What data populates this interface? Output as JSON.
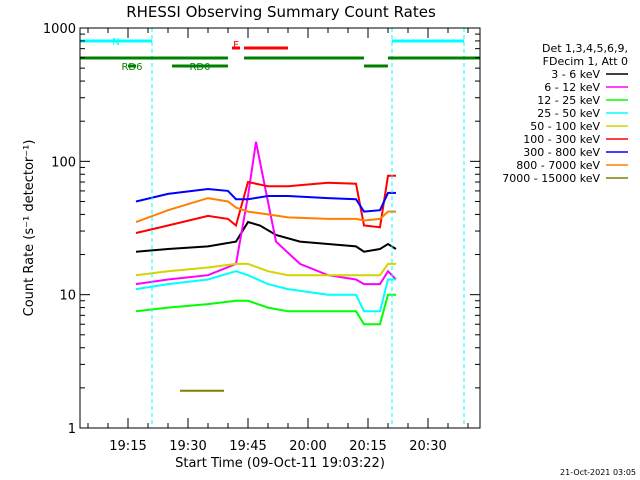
{
  "chart_data": {
    "type": "line",
    "title": "RHESSI Observing Summary Count Rates",
    "xlabel": "Start Time (09-Oct-11 19:03:22)",
    "ylabel": "Count Rate (s⁻¹ detector⁻¹)",
    "yscale": "log",
    "xlim": [
      "19:03",
      "20:43"
    ],
    "ylim": [
      1,
      1000
    ],
    "x_ticks": [
      "19:15",
      "19:30",
      "19:45",
      "20:00",
      "20:15",
      "20:30"
    ],
    "y_ticks": [
      "1",
      "10",
      "100",
      "1000"
    ],
    "legend_position": "right",
    "legend_header": [
      "Det 1,3,4,5,6,9,",
      "FDecim 1, Att 0"
    ],
    "footer": "21-Oct-2021 03:05",
    "data_gaps": [
      {
        "start": "19:03",
        "end": "19:17"
      },
      {
        "start": "20:23",
        "end": "20:43"
      }
    ],
    "flag_markers": {
      "night_lines": [
        "19:03",
        "19:21",
        "20:21",
        "20:39"
      ],
      "night_bars": [
        {
          "start": "19:03",
          "end": "19:21",
          "label": "N"
        },
        {
          "start": "20:21",
          "end": "20:39",
          "label": ""
        }
      ],
      "flare_bars": [
        {
          "start": "19:41",
          "end": "19:43",
          "label": "F"
        },
        {
          "start": "19:44",
          "end": "19:55",
          "label": ""
        }
      ],
      "saa_bars_top": [
        {
          "start": "19:03",
          "end": "19:40",
          "label": ""
        },
        {
          "start": "19:44",
          "end": "20:14",
          "label": ""
        },
        {
          "start": "20:20",
          "end": "20:43",
          "label": ""
        }
      ],
      "saa_bars_bottom": [
        {
          "start": "19:26",
          "end": "19:40",
          "label": "RD0"
        },
        {
          "start": "19:15",
          "end": "19:17",
          "label": "RD6"
        },
        {
          "start": "20:14",
          "end": "20:20",
          "label": ""
        }
      ]
    },
    "series": [
      {
        "name": "3 - 6 keV",
        "color": "#000000",
        "points": [
          [
            "19:17",
            21
          ],
          [
            "19:25",
            22
          ],
          [
            "19:35",
            23
          ],
          [
            "19:42",
            25
          ],
          [
            "19:45",
            35
          ],
          [
            "19:48",
            33
          ],
          [
            "19:52",
            28
          ],
          [
            "19:58",
            25
          ],
          [
            "20:05",
            24
          ],
          [
            "20:12",
            23
          ],
          [
            "20:14",
            21
          ],
          [
            "20:18",
            22
          ],
          [
            "20:20",
            24
          ],
          [
            "20:22",
            22
          ]
        ]
      },
      {
        "name": "6 - 12 keV",
        "color": "#ff00ff",
        "points": [
          [
            "19:17",
            12
          ],
          [
            "19:25",
            13
          ],
          [
            "19:35",
            14
          ],
          [
            "19:42",
            17
          ],
          [
            "19:45",
            55
          ],
          [
            "19:47",
            140
          ],
          [
            "19:49",
            70
          ],
          [
            "19:52",
            25
          ],
          [
            "19:58",
            17
          ],
          [
            "20:05",
            14
          ],
          [
            "20:12",
            13
          ],
          [
            "20:14",
            12
          ],
          [
            "20:18",
            12
          ],
          [
            "20:20",
            15
          ],
          [
            "20:22",
            13
          ]
        ]
      },
      {
        "name": "12 - 25 keV",
        "color": "#00ff00",
        "points": [
          [
            "19:17",
            7.5
          ],
          [
            "19:25",
            8
          ],
          [
            "19:35",
            8.5
          ],
          [
            "19:42",
            9
          ],
          [
            "19:45",
            9
          ],
          [
            "19:50",
            8
          ],
          [
            "19:55",
            7.5
          ],
          [
            "20:05",
            7.5
          ],
          [
            "20:12",
            7.5
          ],
          [
            "20:14",
            6
          ],
          [
            "20:18",
            6
          ],
          [
            "20:20",
            10
          ],
          [
            "20:22",
            10
          ]
        ]
      },
      {
        "name": "25 - 50 keV",
        "color": "#00ffff",
        "points": [
          [
            "19:17",
            11
          ],
          [
            "19:25",
            12
          ],
          [
            "19:35",
            13
          ],
          [
            "19:42",
            15
          ],
          [
            "19:45",
            14
          ],
          [
            "19:50",
            12
          ],
          [
            "19:55",
            11
          ],
          [
            "20:05",
            10
          ],
          [
            "20:12",
            10
          ],
          [
            "20:14",
            7.5
          ],
          [
            "20:18",
            7.5
          ],
          [
            "20:20",
            13
          ],
          [
            "20:22",
            13
          ]
        ]
      },
      {
        "name": "50 - 100 keV",
        "color": "#d4d400",
        "points": [
          [
            "19:17",
            14
          ],
          [
            "19:25",
            15
          ],
          [
            "19:35",
            16
          ],
          [
            "19:42",
            17
          ],
          [
            "19:45",
            17
          ],
          [
            "19:50",
            15
          ],
          [
            "19:55",
            14
          ],
          [
            "20:05",
            14
          ],
          [
            "20:12",
            14
          ],
          [
            "20:14",
            14
          ],
          [
            "20:18",
            14
          ],
          [
            "20:20",
            17
          ],
          [
            "20:22",
            17
          ]
        ]
      },
      {
        "name": "100 - 300 keV",
        "color": "#ff0000",
        "points": [
          [
            "19:17",
            29
          ],
          [
            "19:25",
            33
          ],
          [
            "19:35",
            39
          ],
          [
            "19:40",
            37
          ],
          [
            "19:42",
            33
          ],
          [
            "19:45",
            70
          ],
          [
            "19:50",
            65
          ],
          [
            "19:55",
            65
          ],
          [
            "20:05",
            69
          ],
          [
            "20:12",
            68
          ],
          [
            "20:14",
            33
          ],
          [
            "20:18",
            32
          ],
          [
            "20:20",
            78
          ],
          [
            "20:22",
            78
          ]
        ]
      },
      {
        "name": "300 - 800 keV",
        "color": "#0000ff",
        "points": [
          [
            "19:17",
            50
          ],
          [
            "19:25",
            57
          ],
          [
            "19:35",
            62
          ],
          [
            "19:40",
            60
          ],
          [
            "19:42",
            52
          ],
          [
            "19:45",
            52
          ],
          [
            "19:50",
            55
          ],
          [
            "19:55",
            55
          ],
          [
            "20:05",
            53
          ],
          [
            "20:12",
            52
          ],
          [
            "20:14",
            42
          ],
          [
            "20:18",
            43
          ],
          [
            "20:20",
            58
          ],
          [
            "20:22",
            58
          ]
        ]
      },
      {
        "name": "800 - 7000 keV",
        "color": "#ff8000",
        "points": [
          [
            "19:17",
            35
          ],
          [
            "19:25",
            43
          ],
          [
            "19:35",
            53
          ],
          [
            "19:40",
            50
          ],
          [
            "19:42",
            45
          ],
          [
            "19:45",
            42
          ],
          [
            "19:50",
            40
          ],
          [
            "19:55",
            38
          ],
          [
            "20:05",
            37
          ],
          [
            "20:12",
            37
          ],
          [
            "20:14",
            36
          ],
          [
            "20:18",
            37
          ],
          [
            "20:20",
            42
          ],
          [
            "20:22",
            42
          ]
        ]
      },
      {
        "name": "7000 - 15000 keV",
        "color": "#808000",
        "points": [
          [
            "19:28",
            1.9
          ],
          [
            "19:31",
            1.9
          ],
          [
            "19:35",
            1.9
          ],
          [
            "19:39",
            1.9
          ]
        ]
      }
    ]
  }
}
